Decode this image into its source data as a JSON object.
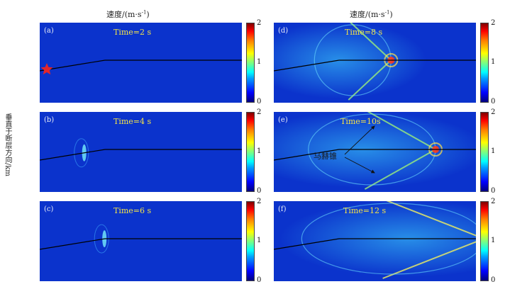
{
  "figure": {
    "left_column_title": "速度/(m·s",
    "right_column_title": "速度/(m·s",
    "title_unit_exp": "-1",
    "title_close": ")",
    "y_axis_label": "垂直于断层方向/km",
    "mach_cone_label": "马赫锥",
    "colorbar": {
      "min_label": "0",
      "mid_label": "1",
      "max_label": "2",
      "colormap": "jet"
    },
    "background_color": "#0b33cc",
    "text_color_time": "#f1e24a",
    "text_color_letter": "#e8edf7",
    "panels": [
      {
        "letter": "(a)",
        "time": "Time=2 s",
        "front_pos": 0.02,
        "hypocenter": true
      },
      {
        "letter": "(b)",
        "time": "Time=4 s",
        "front_pos": 0.22
      },
      {
        "letter": "(c)",
        "time": "Time=6 s",
        "front_pos": 0.32
      },
      {
        "letter": "(d)",
        "time": "Time=8 s",
        "front_pos": 0.58
      },
      {
        "letter": "(e)",
        "time": "Time=10s",
        "front_pos": 0.8,
        "has_mach_label": true
      },
      {
        "letter": "(f)",
        "time": "Time=12 s",
        "front_pos": 1.04
      }
    ]
  }
}
